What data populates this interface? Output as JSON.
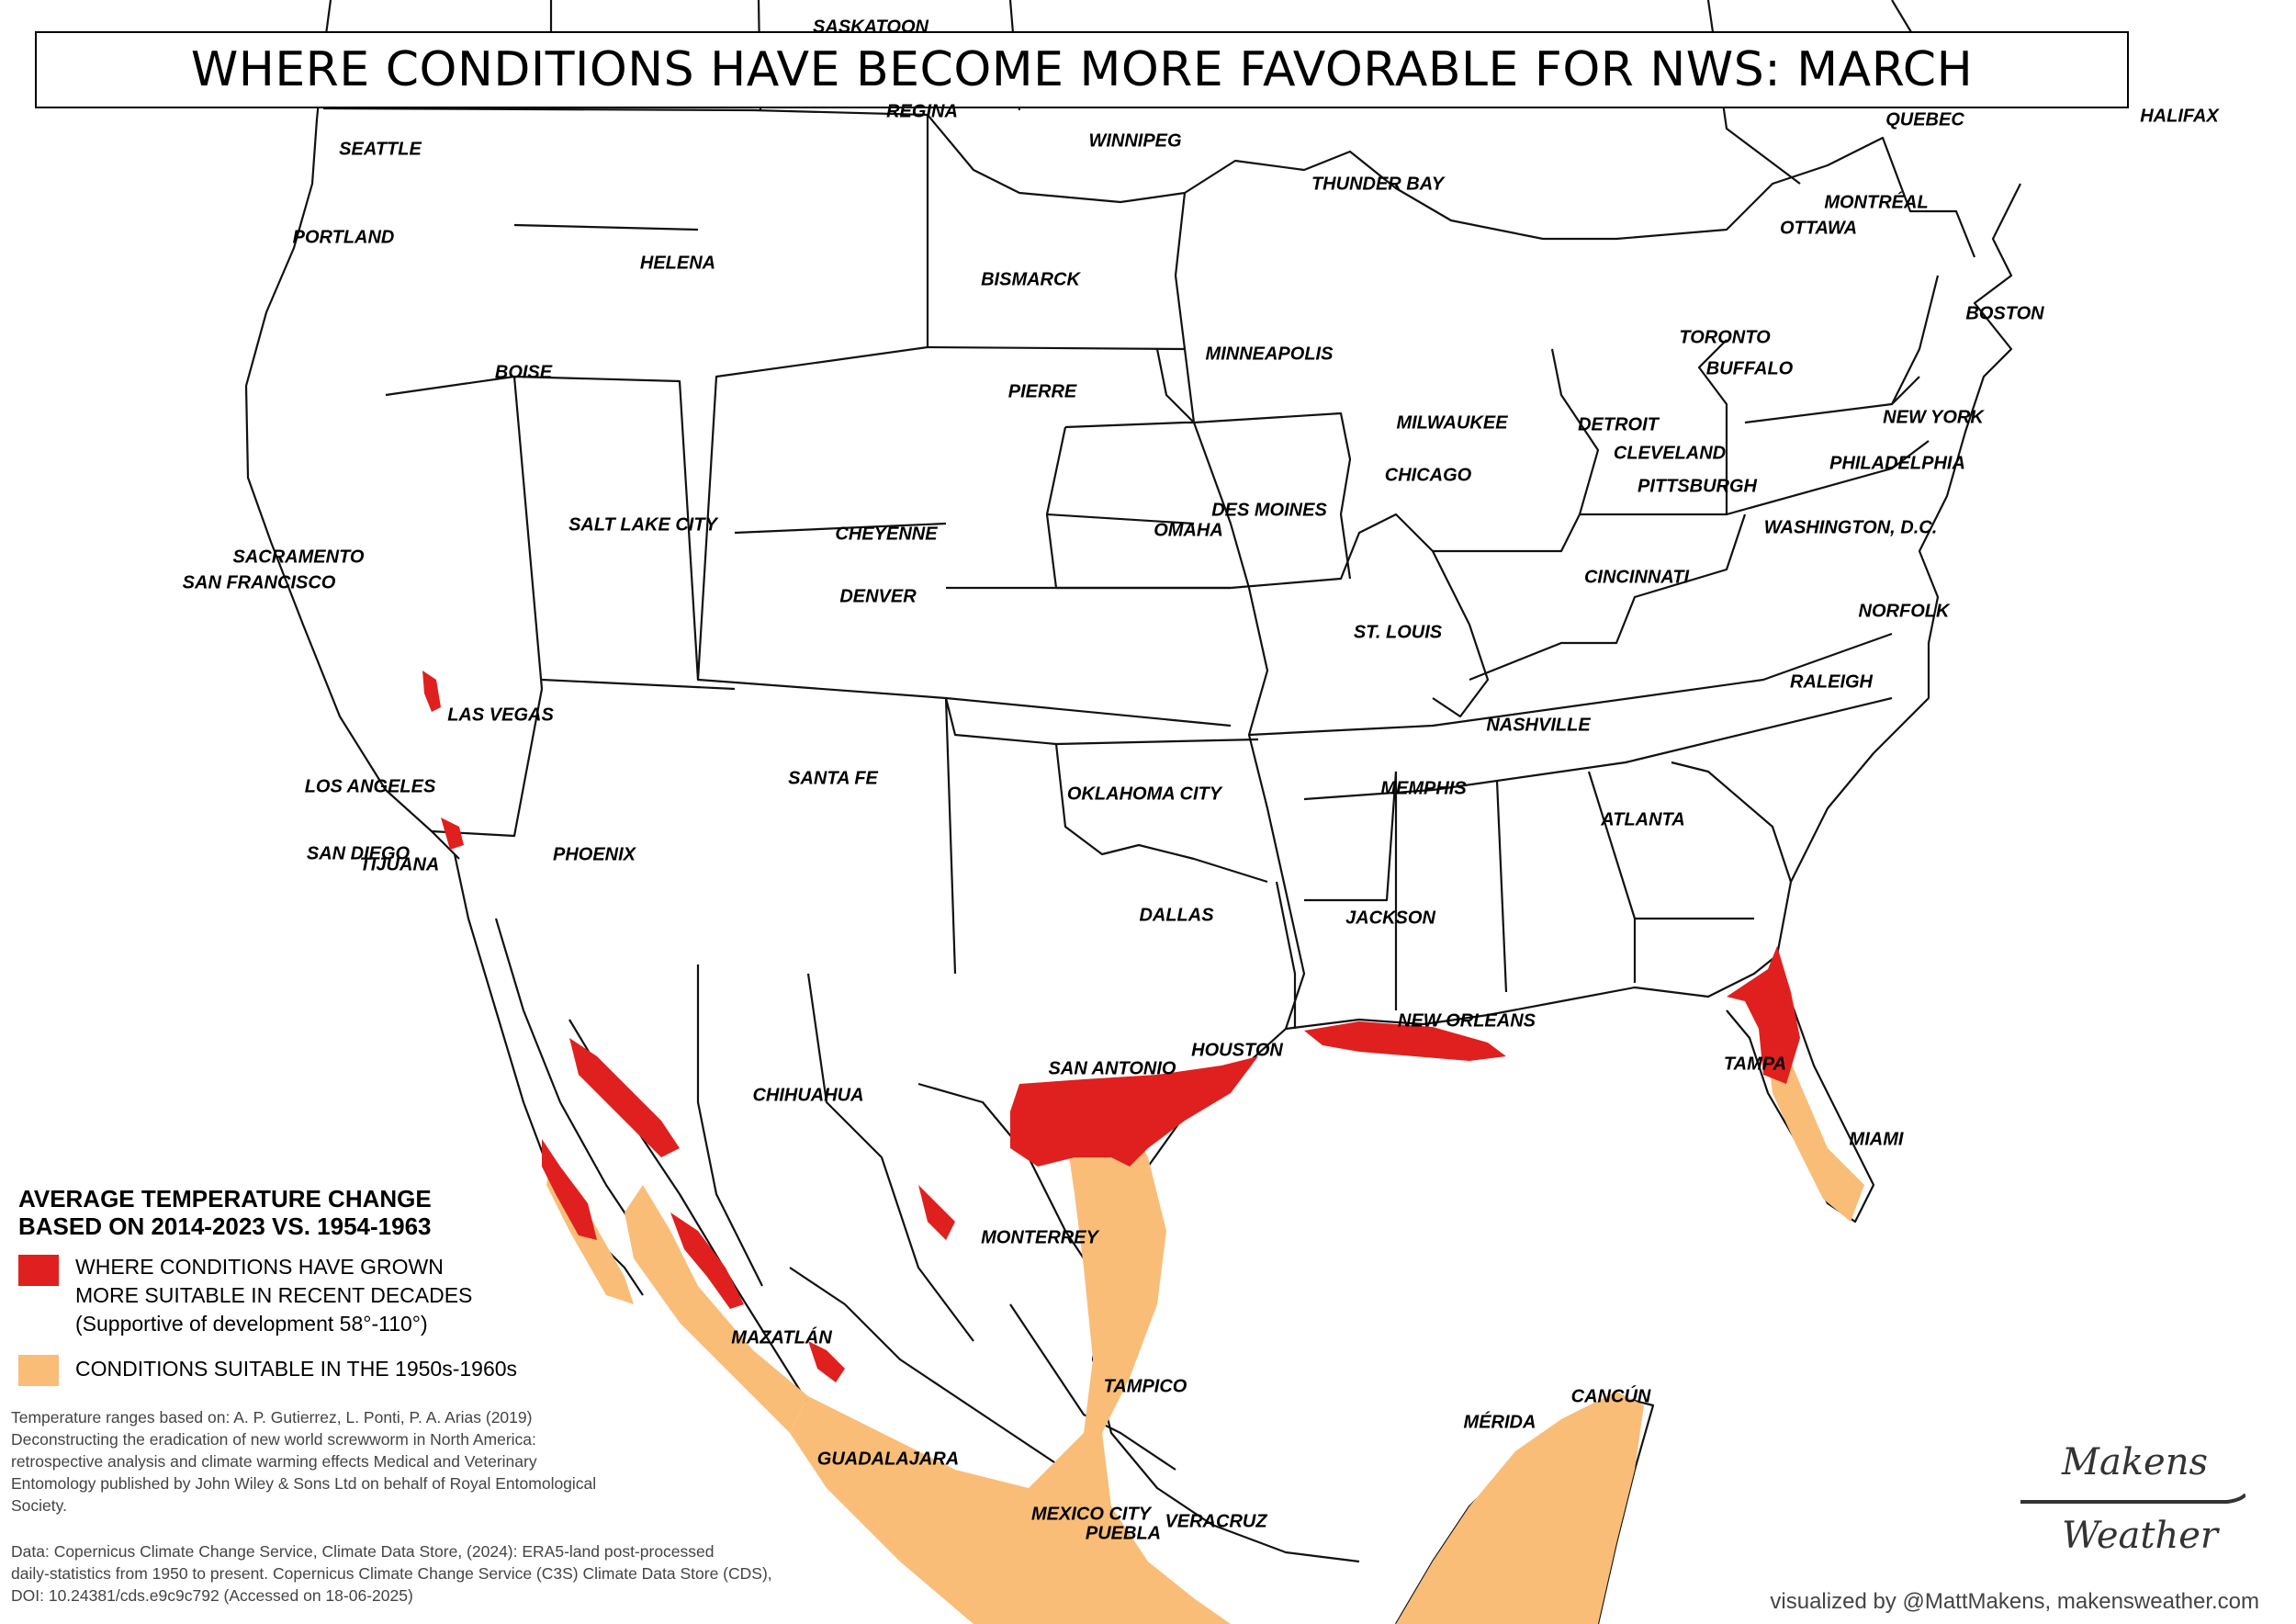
{
  "title": "WHERE CONDITIONS HAVE BECOME MORE FAVORABLE FOR NWS: MARCH",
  "colors": {
    "recent_suitable": "#e0201e",
    "historic_suitable": "#f9bd78",
    "border": "#111111",
    "background": "#ffffff"
  },
  "cities": [
    {
      "name": "SASKATOON"
    },
    {
      "name": "REGINA"
    },
    {
      "name": "WINNIPEG"
    },
    {
      "name": "SEATTLE"
    },
    {
      "name": "PORTLAND"
    },
    {
      "name": "HELENA"
    },
    {
      "name": "BISMARCK"
    },
    {
      "name": "THUNDER BAY"
    },
    {
      "name": "QUEBEC"
    },
    {
      "name": "HALIFAX"
    },
    {
      "name": "MONTRÉAL"
    },
    {
      "name": "OTTAWA"
    },
    {
      "name": "BOSTON"
    },
    {
      "name": "TORONTO"
    },
    {
      "name": "BUFFALO"
    },
    {
      "name": "MINNEAPOLIS"
    },
    {
      "name": "BOISE"
    },
    {
      "name": "PIERRE"
    },
    {
      "name": "MILWAUKEE"
    },
    {
      "name": "DETROIT"
    },
    {
      "name": "NEW YORK"
    },
    {
      "name": "CLEVELAND"
    },
    {
      "name": "CHICAGO"
    },
    {
      "name": "PHILADELPHIA"
    },
    {
      "name": "PITTSBURGH"
    },
    {
      "name": "SALT LAKE CITY"
    },
    {
      "name": "CHEYENNE"
    },
    {
      "name": "DES MOINES"
    },
    {
      "name": "OMAHA"
    },
    {
      "name": "WASHINGTON, D.C."
    },
    {
      "name": "SACRAMENTO"
    },
    {
      "name": "SAN FRANCISCO"
    },
    {
      "name": "CINCINNATI"
    },
    {
      "name": "DENVER"
    },
    {
      "name": "NORFOLK"
    },
    {
      "name": "ST. LOUIS"
    },
    {
      "name": "RALEIGH"
    },
    {
      "name": "LAS VEGAS"
    },
    {
      "name": "NASHVILLE"
    },
    {
      "name": "SANTA FE"
    },
    {
      "name": "LOS ANGELES"
    },
    {
      "name": "MEMPHIS"
    },
    {
      "name": "OKLAHOMA CITY"
    },
    {
      "name": "ATLANTA"
    },
    {
      "name": "SAN DIEGO"
    },
    {
      "name": "TIJUANA"
    },
    {
      "name": "PHOENIX"
    },
    {
      "name": "DALLAS"
    },
    {
      "name": "JACKSON"
    },
    {
      "name": "NEW ORLEANS"
    },
    {
      "name": "HOUSTON"
    },
    {
      "name": "SAN ANTONIO"
    },
    {
      "name": "TAMPA"
    },
    {
      "name": "CHIHUAHUA"
    },
    {
      "name": "MIAMI"
    },
    {
      "name": "MONTERREY"
    },
    {
      "name": "MAZATLÁN"
    },
    {
      "name": "TAMPICO"
    },
    {
      "name": "CANCÚN"
    },
    {
      "name": "MÉRIDA"
    },
    {
      "name": "GUADALAJARA"
    },
    {
      "name": "MEXICO CITY"
    },
    {
      "name": "PUEBLA"
    },
    {
      "name": "VERACRUZ"
    }
  ],
  "legend": {
    "title_line1": "AVERAGE TEMPERATURE CHANGE",
    "title_line2": "BASED ON 2014-2023 VS. 1954-1963",
    "items": [
      {
        "line1": "WHERE CONDITIONS HAVE GROWN",
        "line2": "MORE SUITABLE IN RECENT DECADES",
        "line3": "(Supportive of development 58°-110°)"
      },
      {
        "line1": "CONDITIONS SUITABLE IN THE 1950s-1960s"
      }
    ]
  },
  "source_text": {
    "p1_l1": "Temperature ranges based on: A. P. Gutierrez, L. Ponti, P. A. Arias (2019)",
    "p1_l2": "Deconstructing the eradication of new world screwworm in North America:",
    "p1_l3": "retrospective analysis and climate warming effects Medical and Veterinary",
    "p1_l4": "Entomology published by John Wiley & Sons Ltd on behalf of Royal Entomological",
    "p1_l5": "Society.",
    "p2_l1": "Data: Copernicus Climate Change Service, Climate Data Store, (2024): ERA5-land post-processed",
    "p2_l2": "daily-statistics from 1950 to present. Copernicus Climate Change Service (C3S) Climate Data Store (CDS),",
    "p2_l3": "DOI: 10.24381/cds.e9c9c792 (Accessed on 18-06-2025)"
  },
  "credit": "visualized by @MattMakens, makensweather.com",
  "logo": {
    "line1": "Makens",
    "line2": "Weather"
  }
}
